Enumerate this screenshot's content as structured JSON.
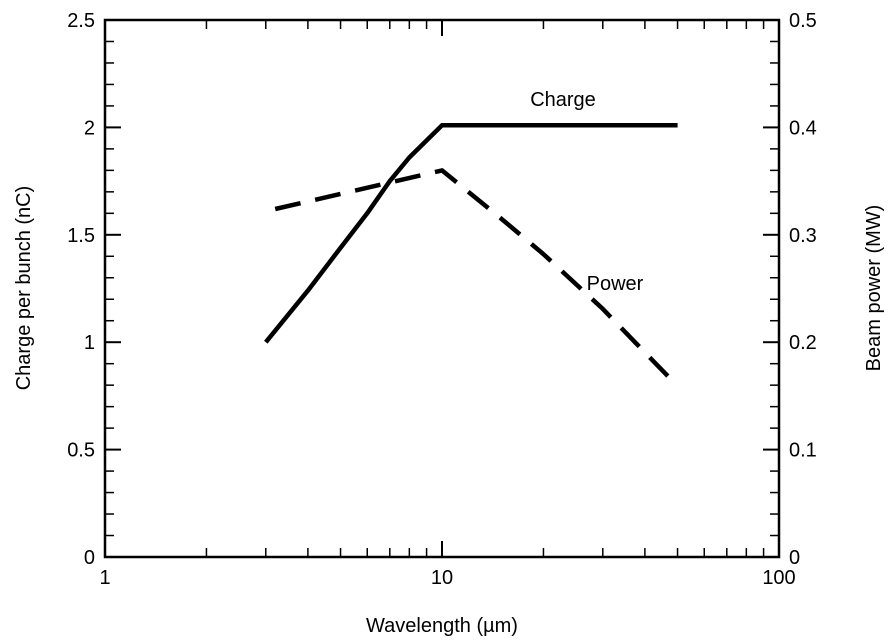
{
  "chart_data": {
    "type": "line",
    "x_scale": "log",
    "xlim": [
      1,
      100
    ],
    "xlabel": "Wavelength (µm)",
    "x_ticks": [
      {
        "value": 1,
        "label": "1"
      },
      {
        "value": 10,
        "label": "10"
      },
      {
        "value": 100,
        "label": "100"
      }
    ],
    "y_left": {
      "label": "Charge per bunch (nC)",
      "lim": [
        0,
        2.5
      ],
      "ticks": [
        {
          "value": 0,
          "label": "0"
        },
        {
          "value": 0.5,
          "label": "0.5"
        },
        {
          "value": 1,
          "label": "1"
        },
        {
          "value": 1.5,
          "label": "1.5"
        },
        {
          "value": 2,
          "label": "2"
        },
        {
          "value": 2.5,
          "label": "2.5"
        }
      ]
    },
    "y_right": {
      "label": "Beam power (MW)",
      "lim": [
        0,
        0.5
      ],
      "ticks": [
        {
          "value": 0,
          "label": "0"
        },
        {
          "value": 0.1,
          "label": "0.1"
        },
        {
          "value": 0.2,
          "label": "0.2"
        },
        {
          "value": 0.3,
          "label": "0.3"
        },
        {
          "value": 0.4,
          "label": "0.4"
        },
        {
          "value": 0.5,
          "label": "0.5"
        }
      ]
    },
    "grid": false,
    "series": [
      {
        "name": "Charge",
        "axis": "left",
        "style": "solid",
        "color": "#000000",
        "points": [
          {
            "x": 3,
            "y": 1.0
          },
          {
            "x": 4,
            "y": 1.24
          },
          {
            "x": 5,
            "y": 1.44
          },
          {
            "x": 6,
            "y": 1.6
          },
          {
            "x": 7,
            "y": 1.75
          },
          {
            "x": 8,
            "y": 1.86
          },
          {
            "x": 10,
            "y": 2.01
          },
          {
            "x": 50,
            "y": 2.01
          }
        ]
      },
      {
        "name": "Power",
        "axis": "right",
        "style": "dashed",
        "color": "#000000",
        "points": [
          {
            "x": 3.2,
            "y": 0.324
          },
          {
            "x": 10,
            "y": 0.36
          },
          {
            "x": 15,
            "y": 0.315
          },
          {
            "x": 20,
            "y": 0.282
          },
          {
            "x": 30,
            "y": 0.231
          },
          {
            "x": 50,
            "y": 0.159
          }
        ]
      }
    ]
  }
}
